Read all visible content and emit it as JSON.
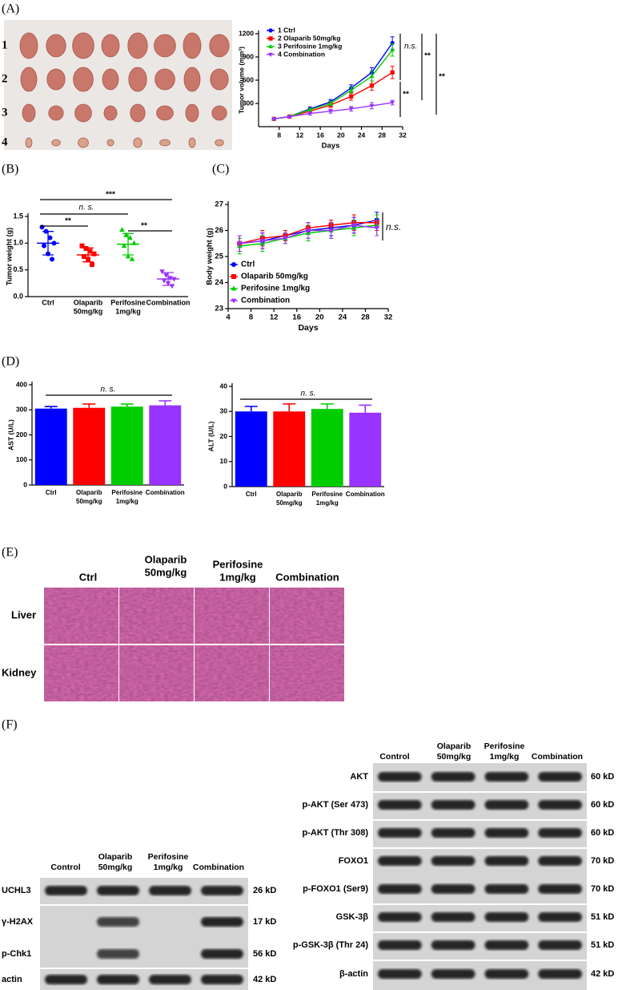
{
  "panel_labels": [
    "(A)",
    "(B)",
    "(C)",
    "(D)",
    "(E)",
    "(F)"
  ],
  "photo": {
    "row_labels": [
      "1",
      "2",
      "3",
      "4"
    ]
  },
  "chart_data": [
    {
      "type": "line",
      "ylabel": "Tumor volume (mm³)",
      "xlabel": "Days",
      "x": [
        7,
        10,
        14,
        18,
        22,
        26,
        30
      ],
      "xlim": [
        4,
        32
      ],
      "xticks": [
        8,
        12,
        16,
        20,
        24,
        28,
        32
      ],
      "ylim": [
        0,
        1200
      ],
      "yticks": [
        300,
        600,
        900,
        1200
      ],
      "series": [
        {
          "name": "1 Ctrl",
          "color": "#0000ff",
          "marker": "circle",
          "values": [
            100,
            130,
            230,
            320,
            500,
            700,
            1080
          ],
          "errors": [
            10,
            15,
            25,
            30,
            40,
            60,
            80
          ]
        },
        {
          "name": "2 Olaparib 50mg/kg",
          "color": "#ff0000",
          "marker": "square",
          "values": [
            100,
            130,
            200,
            280,
            390,
            530,
            700
          ],
          "errors": [
            10,
            15,
            20,
            30,
            50,
            60,
            80
          ]
        },
        {
          "name": "3 Perifosine 1mg/kg",
          "color": "#00cc00",
          "marker": "triangle",
          "values": [
            100,
            130,
            220,
            300,
            470,
            650,
            990
          ],
          "errors": [
            10,
            15,
            20,
            30,
            40,
            60,
            80
          ]
        },
        {
          "name": "4 Combination",
          "color": "#9933ff",
          "marker": "triangle-down",
          "values": [
            100,
            130,
            170,
            200,
            230,
            270,
            310
          ],
          "errors": [
            10,
            15,
            20,
            25,
            30,
            40,
            30
          ]
        }
      ],
      "annotations": [
        "n.s.",
        "**",
        "**",
        "**"
      ]
    },
    {
      "type": "dot",
      "ylabel": "Tumor weight (g)",
      "categories": [
        [
          "Ctrl"
        ],
        [
          "Olaparib",
          "50mg/kg"
        ],
        [
          "Perifosine",
          "1mg/kg"
        ],
        [
          "Combination"
        ]
      ],
      "ylim": [
        0,
        1.5
      ],
      "yticks": [
        {
          "value": 0,
          "label": "0.0"
        },
        {
          "value": 0.5,
          "label": "0.5"
        },
        {
          "value": 1,
          "label": "1.0"
        },
        {
          "value": 1.5,
          "label": "1.5"
        }
      ],
      "colors": [
        "#0000ff",
        "#ff0000",
        "#00cc00",
        "#9933ff"
      ],
      "markers": [
        "circle",
        "square",
        "triangle",
        "triangle-down"
      ],
      "points": [
        [
          1.3,
          1.22,
          1.1,
          1.0,
          0.95,
          0.8,
          0.7
        ],
        [
          0.95,
          0.9,
          0.85,
          0.8,
          0.75,
          0.7,
          0.6
        ],
        [
          1.25,
          1.15,
          1.1,
          1.0,
          0.95,
          0.75,
          0.7
        ],
        [
          0.47,
          0.4,
          0.35,
          0.33,
          0.3,
          0.25,
          0.2
        ]
      ],
      "means": [
        1.0,
        0.78,
        0.98,
        0.33
      ],
      "sds": [
        0.22,
        0.13,
        0.2,
        0.12
      ],
      "annotations": [
        "***",
        "n. s.",
        "**",
        "**"
      ]
    },
    {
      "type": "line",
      "ylabel": "Body weight (g)",
      "xlabel": "Days",
      "x": [
        6,
        10,
        14,
        18,
        22,
        26,
        30
      ],
      "xlim": [
        4,
        32
      ],
      "xticks": [
        4,
        8,
        12,
        16,
        20,
        24,
        28,
        32
      ],
      "ylim": [
        23,
        27
      ],
      "yticks": [
        23,
        24,
        25,
        26,
        27
      ],
      "series": [
        {
          "name": "Ctrl",
          "color": "#0000ff",
          "marker": "circle",
          "values": [
            25.5,
            25.6,
            25.8,
            26.0,
            26.1,
            26.2,
            26.4
          ],
          "errors": [
            0.3,
            0.3,
            0.2,
            0.3,
            0.3,
            0.3,
            0.3
          ]
        },
        {
          "name": "Olaparib 50mg/kg",
          "color": "#ff0000",
          "marker": "square",
          "values": [
            25.5,
            25.7,
            25.8,
            26.1,
            26.2,
            26.3,
            26.3
          ],
          "errors": [
            0.3,
            0.3,
            0.2,
            0.2,
            0.2,
            0.3,
            0.3
          ]
        },
        {
          "name": "Perifosine 1mg/kg",
          "color": "#00cc00",
          "marker": "triangle",
          "values": [
            25.4,
            25.5,
            25.7,
            25.9,
            26.0,
            26.1,
            26.2
          ],
          "errors": [
            0.3,
            0.3,
            0.2,
            0.3,
            0.3,
            0.3,
            0.4
          ]
        },
        {
          "name": "Combination",
          "color": "#9933ff",
          "marker": "triangle-down",
          "values": [
            25.5,
            25.6,
            25.7,
            26.0,
            26.0,
            26.2,
            26.1
          ],
          "errors": [
            0.3,
            0.3,
            0.2,
            0.3,
            0.3,
            0.3,
            0.3
          ]
        }
      ],
      "annotations": [
        "n.s."
      ]
    },
    {
      "type": "bar",
      "ylabel": "AST (U/L)",
      "categories": [
        [
          "Ctrl"
        ],
        [
          "Olaparib",
          "50mg/kg"
        ],
        [
          "Perifosine",
          "1mg/kg"
        ],
        [
          "Combination"
        ]
      ],
      "values": [
        305,
        308,
        313,
        318
      ],
      "errors": [
        8,
        15,
        10,
        18
      ],
      "colors": [
        "#0000ff",
        "#ff0000",
        "#00cc00",
        "#9933ff"
      ],
      "ylim": [
        0,
        400
      ],
      "yticks": [
        0,
        100,
        200,
        300,
        400
      ],
      "annotations": [
        "n. s."
      ]
    },
    {
      "type": "bar",
      "ylabel": "ALT (U/L)",
      "categories": [
        [
          "Ctrl"
        ],
        [
          "Olaparib",
          "50mg/kg"
        ],
        [
          "Perifosine",
          "1mg/kg"
        ],
        [
          "Combination"
        ]
      ],
      "values": [
        30,
        30,
        31,
        29.5
      ],
      "errors": [
        2,
        3,
        2,
        3
      ],
      "colors": [
        "#0000ff",
        "#ff0000",
        "#00cc00",
        "#9933ff"
      ],
      "ylim": [
        0,
        40
      ],
      "yticks": [
        0,
        10,
        20,
        30,
        40
      ],
      "annotations": [
        "n. s."
      ]
    }
  ],
  "histology": {
    "columns": [
      [
        "Ctrl"
      ],
      [
        "Olaparib",
        "50mg/kg"
      ],
      [
        "Perifosine",
        "1mg/kg"
      ],
      [
        "Combination"
      ]
    ],
    "rows": [
      "Liver",
      "Kidney"
    ]
  },
  "blots": [
    {
      "columns": [
        [
          "Control"
        ],
        [
          "Olaparib",
          "50mg/kg"
        ],
        [
          "Perifosine",
          "1mg/kg"
        ],
        [
          "Combination"
        ]
      ],
      "rows": [
        {
          "name": "UCHL3",
          "size": "26 kD"
        },
        {
          "name": "γ-H2AX",
          "size": "17 kD"
        },
        {
          "name": "p-Chk1",
          "size": "56 kD"
        },
        {
          "name": "actin",
          "size": "42 kD"
        }
      ]
    },
    {
      "columns": [
        [
          "Control"
        ],
        [
          "Olaparib",
          "50mg/kg"
        ],
        [
          "Perifosine",
          "1mg/kg"
        ],
        [
          "Combination"
        ]
      ],
      "rows": [
        {
          "name": "AKT",
          "size": "60 kD"
        },
        {
          "name": "p-AKT (Ser 473)",
          "size": "60 kD"
        },
        {
          "name": "p-AKT (Thr 308)",
          "size": "60 kD"
        },
        {
          "name": "FOXO1",
          "size": "70 kD"
        },
        {
          "name": "p-FOXO1 (Ser9)",
          "size": "70 kD"
        },
        {
          "name": "GSK-3β",
          "size": "51 kD"
        },
        {
          "name": "p-GSK-3β (Thr 24)",
          "size": "51 kD"
        },
        {
          "name": "β-actin",
          "size": "42 kD"
        }
      ]
    }
  ]
}
